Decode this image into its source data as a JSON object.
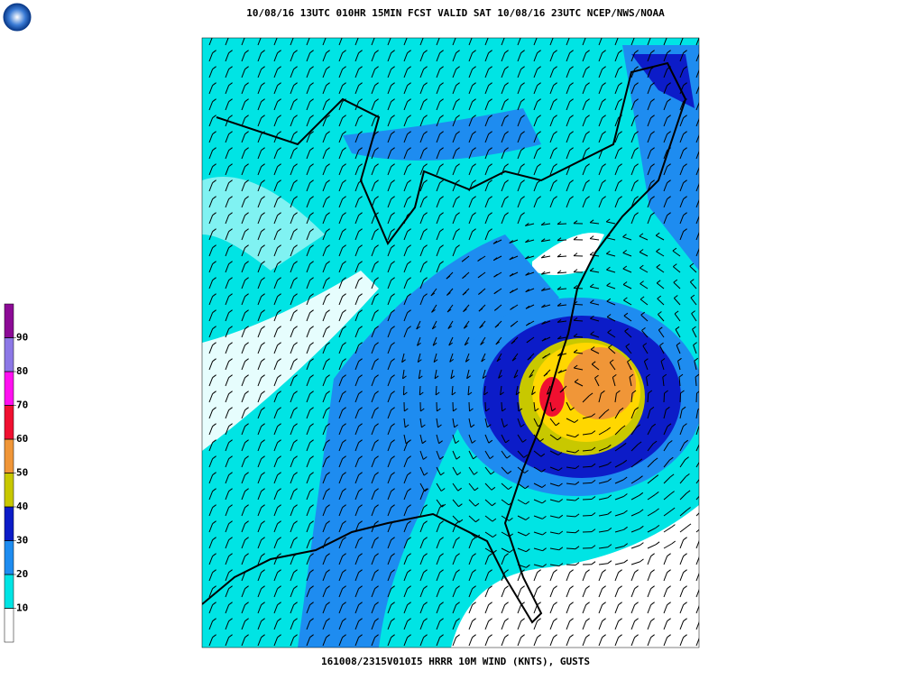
{
  "header": {
    "title": "10/08/16 13UTC  010HR 15MIN FCST VALID SAT 10/08/16 23UTC  NCEP/NWS/NOAA"
  },
  "footer": {
    "text": "161008/2315V010I5 HRRR 10M WIND (KNTS), GUSTS"
  },
  "legend": {
    "lim": [
      0,
      100
    ],
    "ticks": [
      10,
      20,
      30,
      40,
      50,
      60,
      70,
      80,
      90
    ],
    "colors": [
      "#ffffff",
      "#00e4e4",
      "#1e8cf0",
      "#0c1cc8",
      "#c8c800",
      "#f09638",
      "#f01030",
      "#ff10f0",
      "#8c78e6",
      "#8c0a96"
    ]
  }
}
